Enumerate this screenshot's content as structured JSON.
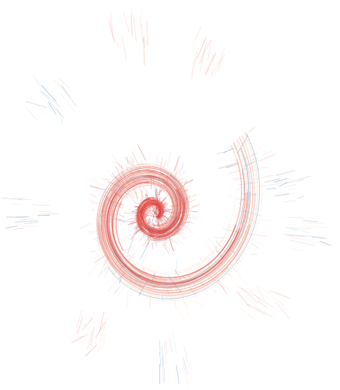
{
  "artwork": {
    "subject": "spiral-line-art",
    "background_color": "#ffffff",
    "palette": {
      "deep_red": "#c8202a",
      "red": "#e0504a",
      "salmon": "#ee9585",
      "peach": "#f6c7b3",
      "pale_peach": "#fbe3d5",
      "steel_blue": "#4a86b8",
      "light_blue": "#9fc3de"
    },
    "spiral_turns": 2.3,
    "stroke_count": 260,
    "bristle_count": 900
  }
}
